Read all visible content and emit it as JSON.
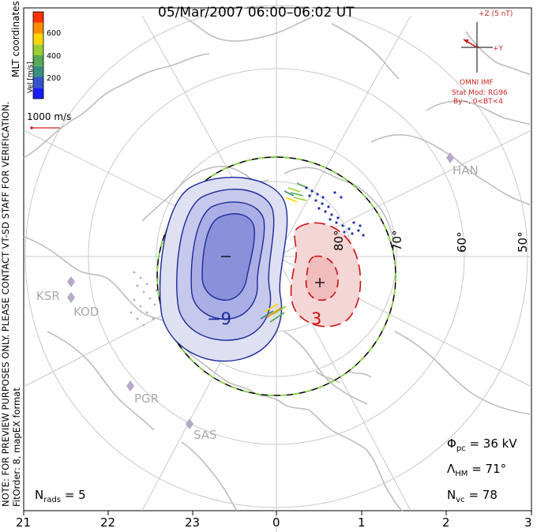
{
  "title": "05/Mar/2007 06:00–06:02 UT",
  "coords_label": "MLT coordinates",
  "note_line1": "NOTE: FOR PREVIEW PURPOSES ONLY. PLEASE CONTACT VT-SD STAFF FOR VERIFICATION.",
  "note_line2": "FitOrder: 8, mapEX format",
  "colorbar": {
    "label": "Vel [m/s]",
    "ticks": [
      "600",
      "400",
      "200"
    ],
    "colors": [
      "#1a1aff",
      "#3355cc",
      "#3a8f80",
      "#55aa55",
      "#9acd32",
      "#ffd700",
      "#ff8c00",
      "#ff3300"
    ]
  },
  "scale_label": "1000 m/s",
  "imf": {
    "z_label": "+Z (5 nT)",
    "y_label": "+Y",
    "source": "OMNI IMF",
    "model": "Stat Mod: RG96",
    "condition": "By−, 0<BT<4",
    "color": "#cc2222"
  },
  "latitudes": [
    "80°",
    "70°",
    "60°",
    "50°"
  ],
  "mlt_ticks": [
    "21",
    "22",
    "23",
    "0",
    "1",
    "2",
    "3"
  ],
  "radars": [
    "HAN",
    "KSR",
    "KOD",
    "PGR",
    "SAS"
  ],
  "contours": {
    "negative_label": "−9",
    "positive_label": "3",
    "min_symbol": "−",
    "max_symbol": "+"
  },
  "stats": {
    "phi_symbol": "Φ",
    "phi_sub": "pc",
    "phi_value": "= 36 kV",
    "lambda_symbol": "Λ",
    "lambda_sub": "HM",
    "lambda_value": "= 71°",
    "nvc_symbol": "N",
    "nvc_sub": "vc",
    "nvc_value": "= 78",
    "nrads_symbol": "N",
    "nrads_sub": "rads",
    "nrads_value": "= 5"
  }
}
